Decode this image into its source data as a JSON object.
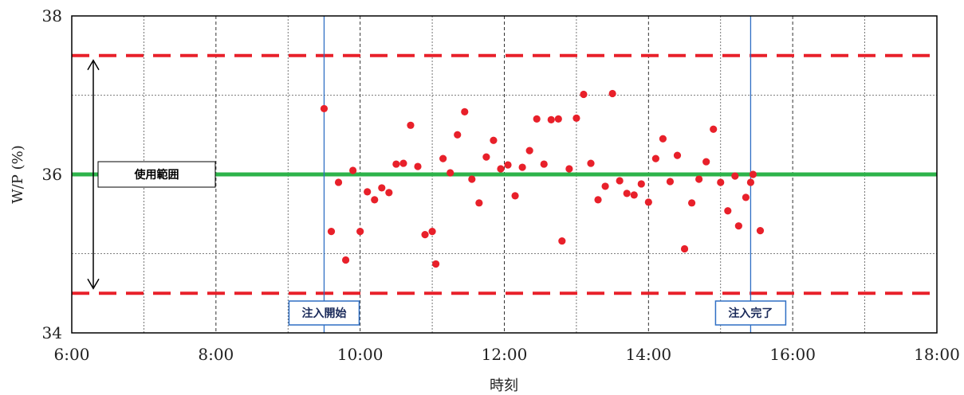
{
  "chart_data": {
    "type": "scatter",
    "title": "",
    "xlabel": "時刻",
    "ylabel": "W/P (%)",
    "xlim": [
      "6:00",
      "18:00"
    ],
    "ylim": [
      34,
      38
    ],
    "x_ticks": [
      "6:00",
      "8:00",
      "10:00",
      "12:00",
      "14:00",
      "16:00",
      "18:00"
    ],
    "y_ticks": [
      "34",
      "36",
      "38"
    ],
    "grid": true,
    "reference_lines": [
      {
        "kind": "target",
        "value": 36,
        "color": "#2db34a",
        "style": "solid"
      },
      {
        "kind": "upper_limit",
        "value": 37.5,
        "color": "#e8202a",
        "style": "dashed"
      },
      {
        "kind": "lower_limit",
        "value": 34.5,
        "color": "#e8202a",
        "style": "dashed"
      }
    ],
    "range_annotation": {
      "label": "使用範囲",
      "from": 34.5,
      "to": 37.5
    },
    "events": [
      {
        "label": "注入開始",
        "time": "9:30",
        "color": "#2f6fc4"
      },
      {
        "label": "注入完了",
        "time": "15:25",
        "color": "#2f6fc4"
      }
    ],
    "series": [
      {
        "color": "#e8202a",
        "points": [
          {
            "x": "9:30",
            "y": 36.83
          },
          {
            "x": "9:36",
            "y": 35.28
          },
          {
            "x": "9:42",
            "y": 35.9
          },
          {
            "x": "9:48",
            "y": 34.92
          },
          {
            "x": "9:54",
            "y": 36.05
          },
          {
            "x": "10:00",
            "y": 35.28
          },
          {
            "x": "10:06",
            "y": 35.78
          },
          {
            "x": "10:12",
            "y": 35.68
          },
          {
            "x": "10:18",
            "y": 35.83
          },
          {
            "x": "10:24",
            "y": 35.77
          },
          {
            "x": "10:30",
            "y": 36.13
          },
          {
            "x": "10:36",
            "y": 36.14
          },
          {
            "x": "10:42",
            "y": 36.62
          },
          {
            "x": "10:48",
            "y": 36.1
          },
          {
            "x": "10:54",
            "y": 35.24
          },
          {
            "x": "11:00",
            "y": 35.28
          },
          {
            "x": "11:03",
            "y": 34.87
          },
          {
            "x": "11:09",
            "y": 36.2
          },
          {
            "x": "11:15",
            "y": 36.02
          },
          {
            "x": "11:21",
            "y": 36.5
          },
          {
            "x": "11:27",
            "y": 36.79
          },
          {
            "x": "11:33",
            "y": 35.94
          },
          {
            "x": "11:39",
            "y": 35.64
          },
          {
            "x": "11:45",
            "y": 36.22
          },
          {
            "x": "11:51",
            "y": 36.43
          },
          {
            "x": "11:57",
            "y": 36.07
          },
          {
            "x": "12:03",
            "y": 36.12
          },
          {
            "x": "12:09",
            "y": 35.73
          },
          {
            "x": "12:15",
            "y": 36.09
          },
          {
            "x": "12:21",
            "y": 36.3
          },
          {
            "x": "12:27",
            "y": 36.7
          },
          {
            "x": "12:33",
            "y": 36.13
          },
          {
            "x": "12:39",
            "y": 36.69
          },
          {
            "x": "12:45",
            "y": 36.7
          },
          {
            "x": "12:48",
            "y": 35.16
          },
          {
            "x": "12:54",
            "y": 36.07
          },
          {
            "x": "13:00",
            "y": 36.71
          },
          {
            "x": "13:06",
            "y": 37.01
          },
          {
            "x": "13:12",
            "y": 36.14
          },
          {
            "x": "13:18",
            "y": 35.68
          },
          {
            "x": "13:24",
            "y": 35.85
          },
          {
            "x": "13:30",
            "y": 37.02
          },
          {
            "x": "13:36",
            "y": 35.92
          },
          {
            "x": "13:42",
            "y": 35.76
          },
          {
            "x": "13:48",
            "y": 35.74
          },
          {
            "x": "13:54",
            "y": 35.88
          },
          {
            "x": "14:00",
            "y": 35.65
          },
          {
            "x": "14:06",
            "y": 36.2
          },
          {
            "x": "14:12",
            "y": 36.45
          },
          {
            "x": "14:18",
            "y": 35.91
          },
          {
            "x": "14:24",
            "y": 36.24
          },
          {
            "x": "14:30",
            "y": 35.06
          },
          {
            "x": "14:36",
            "y": 35.64
          },
          {
            "x": "14:42",
            "y": 35.94
          },
          {
            "x": "14:48",
            "y": 36.16
          },
          {
            "x": "14:54",
            "y": 36.57
          },
          {
            "x": "15:00",
            "y": 35.9
          },
          {
            "x": "15:06",
            "y": 35.54
          },
          {
            "x": "15:12",
            "y": 35.98
          },
          {
            "x": "15:15",
            "y": 35.35
          },
          {
            "x": "15:21",
            "y": 35.71
          },
          {
            "x": "15:27",
            "y": 36.0
          },
          {
            "x": "15:33",
            "y": 35.29
          },
          {
            "x": "15:25",
            "y": 35.9
          }
        ]
      }
    ]
  }
}
